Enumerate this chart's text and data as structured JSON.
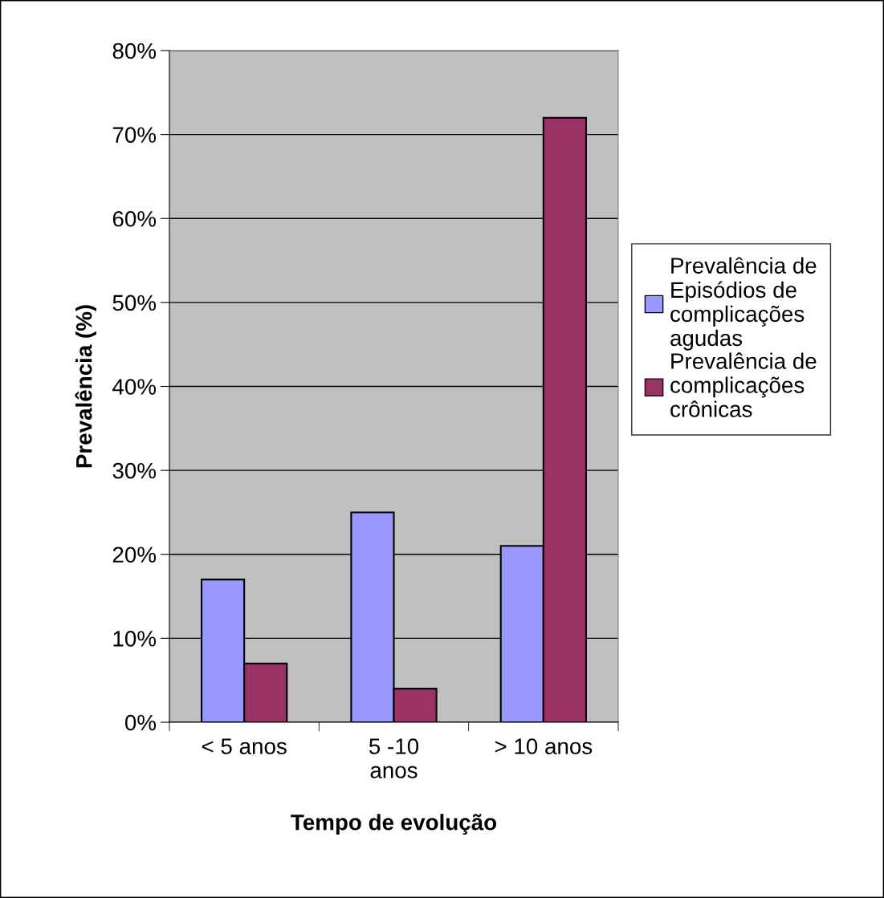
{
  "chart_data": {
    "type": "bar",
    "xlabel": "Tempo de evolução",
    "ylabel": "Prevalência (%)",
    "categories": [
      "< 5 anos",
      "5 -10\nanos",
      "> 10 anos"
    ],
    "series": [
      {
        "name": "Prevalência de\nEpisódios de\ncomplicações\nagudas",
        "color": "#9999ff",
        "values": [
          17,
          25,
          21
        ]
      },
      {
        "name": "Prevalência de\ncomplicações\ncrônicas",
        "color": "#993366",
        "values": [
          7,
          4,
          72
        ]
      }
    ],
    "ylim": [
      0,
      80
    ],
    "yticks": [
      {
        "value": 0,
        "label": "0%"
      },
      {
        "value": 10,
        "label": "10%"
      },
      {
        "value": 20,
        "label": "20%"
      },
      {
        "value": 30,
        "label": "30%"
      },
      {
        "value": 40,
        "label": "40%"
      },
      {
        "value": 50,
        "label": "50%"
      },
      {
        "value": 60,
        "label": "60%"
      },
      {
        "value": 70,
        "label": "70%"
      },
      {
        "value": 80,
        "label": "80%"
      }
    ],
    "grid": "y",
    "legend": "right"
  }
}
